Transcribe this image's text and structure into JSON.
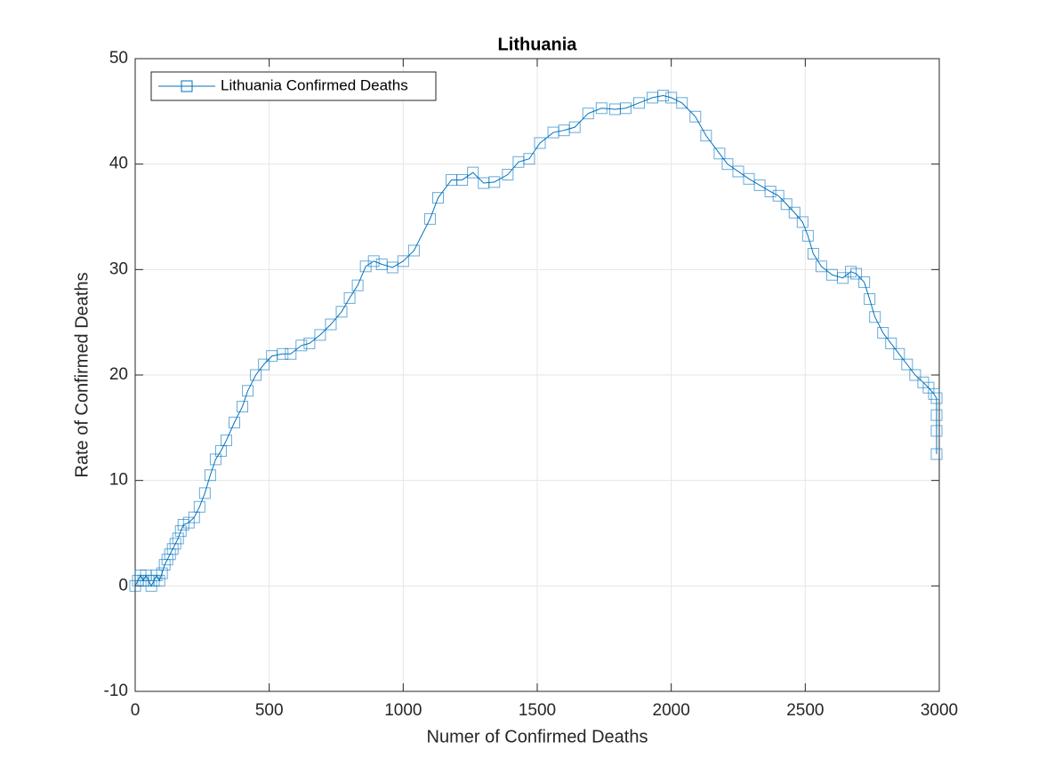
{
  "chart_data": {
    "type": "line",
    "title": "Lithuania",
    "xlabel": "Numer of Confirmed Deaths",
    "ylabel": "Rate of Confirmed Deaths",
    "xlim": [
      0,
      3000
    ],
    "xticks": [
      0,
      500,
      1000,
      1500,
      2000,
      2500,
      3000
    ],
    "ylim": [
      -10,
      50
    ],
    "yticks": [
      -10,
      0,
      10,
      20,
      30,
      40,
      50
    ],
    "grid": true,
    "legend": "upper-left",
    "marker": "square",
    "series": [
      {
        "name": "Lithuania Confirmed Deaths",
        "color": "#0072bd",
        "x": [
          0,
          10,
          20,
          30,
          40,
          50,
          60,
          70,
          80,
          90,
          100,
          110,
          120,
          130,
          140,
          150,
          160,
          170,
          180,
          200,
          220,
          240,
          260,
          280,
          300,
          320,
          340,
          370,
          400,
          420,
          450,
          480,
          510,
          550,
          580,
          620,
          650,
          690,
          730,
          770,
          800,
          830,
          860,
          890,
          920,
          960,
          1000,
          1040,
          1100,
          1130,
          1180,
          1220,
          1260,
          1300,
          1340,
          1390,
          1430,
          1470,
          1510,
          1560,
          1600,
          1640,
          1690,
          1740,
          1790,
          1830,
          1880,
          1930,
          1970,
          2000,
          2040,
          2090,
          2130,
          2180,
          2210,
          2250,
          2290,
          2330,
          2370,
          2400,
          2430,
          2460,
          2490,
          2510,
          2530,
          2560,
          2600,
          2640,
          2670,
          2690,
          2720,
          2740,
          2760,
          2790,
          2820,
          2850,
          2880,
          2910,
          2940,
          2960,
          2980,
          2990,
          2990,
          2990,
          2990
        ],
        "values": [
          0,
          0.5,
          1,
          0.5,
          1,
          0.5,
          0,
          0.5,
          1,
          0.5,
          1.2,
          2,
          2.5,
          3,
          3.5,
          4,
          4.5,
          5.2,
          5.8,
          6,
          6.5,
          7.5,
          8.8,
          10.5,
          12,
          12.8,
          13.8,
          15.5,
          17,
          18.5,
          20,
          21,
          21.8,
          22,
          22,
          22.8,
          23,
          23.8,
          24.8,
          26,
          27.3,
          28.5,
          30.3,
          30.8,
          30.5,
          30.2,
          30.8,
          31.8,
          34.8,
          36.8,
          38.5,
          38.5,
          39.2,
          38.2,
          38.3,
          39,
          40.2,
          40.5,
          42,
          43,
          43.2,
          43.5,
          44.8,
          45.3,
          45.2,
          45.3,
          45.8,
          46.3,
          46.5,
          46.3,
          45.8,
          44.5,
          42.7,
          41,
          40,
          39.3,
          38.6,
          38,
          37.4,
          37,
          36.2,
          35.4,
          34.5,
          33.2,
          31.5,
          30.3,
          29.5,
          29.2,
          29.8,
          29.6,
          28.8,
          27.2,
          25.5,
          24,
          23,
          22,
          21,
          20,
          19.3,
          18.8,
          18.2,
          17.8,
          16.2,
          14.7,
          12.5
        ]
      }
    ]
  }
}
